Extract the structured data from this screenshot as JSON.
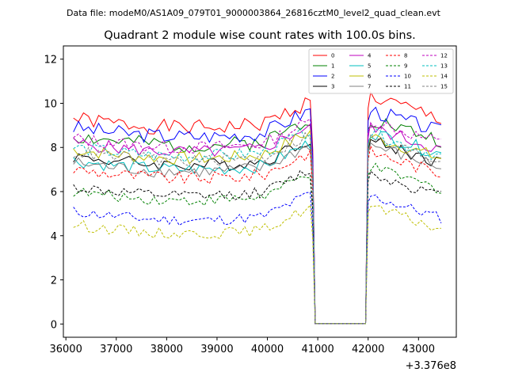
{
  "header": {
    "data_file": "Data file: modeM0/AS1A09_079T01_9000003864_26816cztM0_level2_quad_clean.evt"
  },
  "chart_data": {
    "type": "line",
    "title": "Quadrant 2 module wise count rates with 100.0s bins.",
    "xlabel": "",
    "ylabel": "",
    "x_offset_label": "+3.376e8",
    "xlim": [
      35950,
      43750
    ],
    "ylim": [
      -0.6,
      12.6
    ],
    "xticks": [
      36000,
      37000,
      38000,
      39000,
      40000,
      41000,
      42000,
      43000
    ],
    "xtick_labels": [
      "36000",
      "37000",
      "38000",
      "39000",
      "40000",
      "41000",
      "42000",
      "43000"
    ],
    "yticks": [
      0,
      2,
      4,
      6,
      8,
      10,
      12
    ],
    "ytick_labels": [
      "0",
      "2",
      "4",
      "6",
      "8",
      "10",
      "12"
    ],
    "grid": false,
    "legend_position": "top-right",
    "time_segments": [
      {
        "start": 36150,
        "end": 40850
      },
      {
        "start": 42050,
        "end": 43450
      }
    ],
    "gap": {
      "start": 40950,
      "end": 41950
    },
    "bin_size": 100,
    "series": [
      {
        "name": "0",
        "color": "#ff0000",
        "dash": "solid",
        "level_a": 9.3,
        "level_b": 10.3,
        "amp": 0.35,
        "seed": 1
      },
      {
        "name": "1",
        "color": "#008000",
        "dash": "solid",
        "level_a": 8.5,
        "level_b": 9.3,
        "amp": 0.35,
        "seed": 2
      },
      {
        "name": "2",
        "color": "#0000ff",
        "dash": "solid",
        "level_a": 8.9,
        "level_b": 9.7,
        "amp": 0.35,
        "seed": 3
      },
      {
        "name": "3",
        "color": "#000000",
        "dash": "solid",
        "level_a": 7.6,
        "level_b": 8.3,
        "amp": 0.3,
        "seed": 4
      },
      {
        "name": "4",
        "color": "#bf00bf",
        "dash": "solid",
        "level_a": 8.2,
        "level_b": 8.9,
        "amp": 0.3,
        "seed": 5
      },
      {
        "name": "5",
        "color": "#00bfbf",
        "dash": "solid",
        "level_a": 7.4,
        "level_b": 8.7,
        "amp": 0.3,
        "seed": 6
      },
      {
        "name": "6",
        "color": "#bfbf00",
        "dash": "solid",
        "level_a": 7.9,
        "level_b": 8.5,
        "amp": 0.3,
        "seed": 7
      },
      {
        "name": "7",
        "color": "#808080",
        "dash": "solid",
        "level_a": 7.3,
        "level_b": 8.1,
        "amp": 0.3,
        "seed": 8
      },
      {
        "name": "8",
        "color": "#ff0000",
        "dash": "dashed",
        "level_a": 7.0,
        "level_b": 7.8,
        "amp": 0.3,
        "seed": 9
      },
      {
        "name": "9",
        "color": "#008000",
        "dash": "dashed",
        "level_a": 6.0,
        "level_b": 7.1,
        "amp": 0.25,
        "seed": 10
      },
      {
        "name": "10",
        "color": "#0000ff",
        "dash": "dashed",
        "level_a": 5.1,
        "level_b": 5.8,
        "amp": 0.25,
        "seed": 11
      },
      {
        "name": "11",
        "color": "#000000",
        "dash": "dashed",
        "level_a": 6.2,
        "level_b": 6.8,
        "amp": 0.25,
        "seed": 12
      },
      {
        "name": "12",
        "color": "#bf00bf",
        "dash": "dashed",
        "level_a": 8.4,
        "level_b": 9.2,
        "amp": 0.3,
        "seed": 13
      },
      {
        "name": "13",
        "color": "#00bfbf",
        "dash": "dashed",
        "level_a": 8.0,
        "level_b": 8.6,
        "amp": 0.3,
        "seed": 14
      },
      {
        "name": "14",
        "color": "#bfbf00",
        "dash": "dashed",
        "level_a": 4.5,
        "level_b": 5.3,
        "amp": 0.25,
        "seed": 15
      },
      {
        "name": "15",
        "color": "#808080",
        "dash": "dashed",
        "level_a": 7.8,
        "level_b": 8.4,
        "amp": 0.3,
        "seed": 16
      }
    ]
  }
}
